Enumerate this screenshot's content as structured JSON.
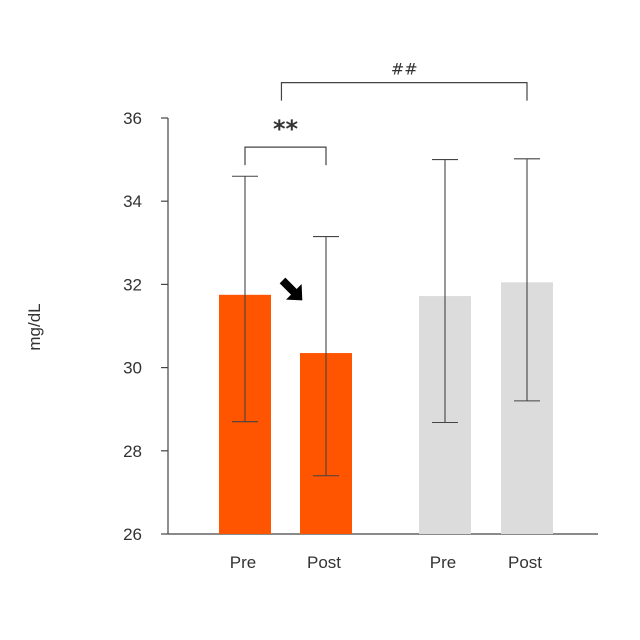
{
  "chart_data": {
    "type": "bar",
    "ylabel": "mg/dL",
    "ylim": [
      26,
      36
    ],
    "yticks": [
      26,
      28,
      30,
      32,
      34,
      36
    ],
    "grid": false,
    "legend": "none",
    "bars": [
      {
        "category": "Pre",
        "value": 31.75,
        "err_low": 28.7,
        "err_high": 34.6,
        "color": "#FF5500"
      },
      {
        "category": "Post",
        "value": 30.35,
        "err_low": 27.4,
        "err_high": 33.15,
        "color": "#FF5500"
      },
      {
        "category": "Pre",
        "value": 31.72,
        "err_low": 28.68,
        "err_high": 35.0,
        "color": "#DCDCDC"
      },
      {
        "category": "Post",
        "value": 32.05,
        "err_low": 29.2,
        "err_high": 35.02,
        "color": "#DCDCDC"
      }
    ],
    "annotations": [
      {
        "type": "bracket",
        "from_bar": 0,
        "to_bar": 1,
        "label": "**",
        "y": 35.3
      },
      {
        "type": "bracket",
        "from_bar": 0.45,
        "to_bar": 3,
        "label": "##",
        "y": 36.85
      },
      {
        "type": "arrow",
        "target_bar": 1,
        "icon": "arrow-down-right-icon",
        "color": "#000000"
      }
    ]
  }
}
